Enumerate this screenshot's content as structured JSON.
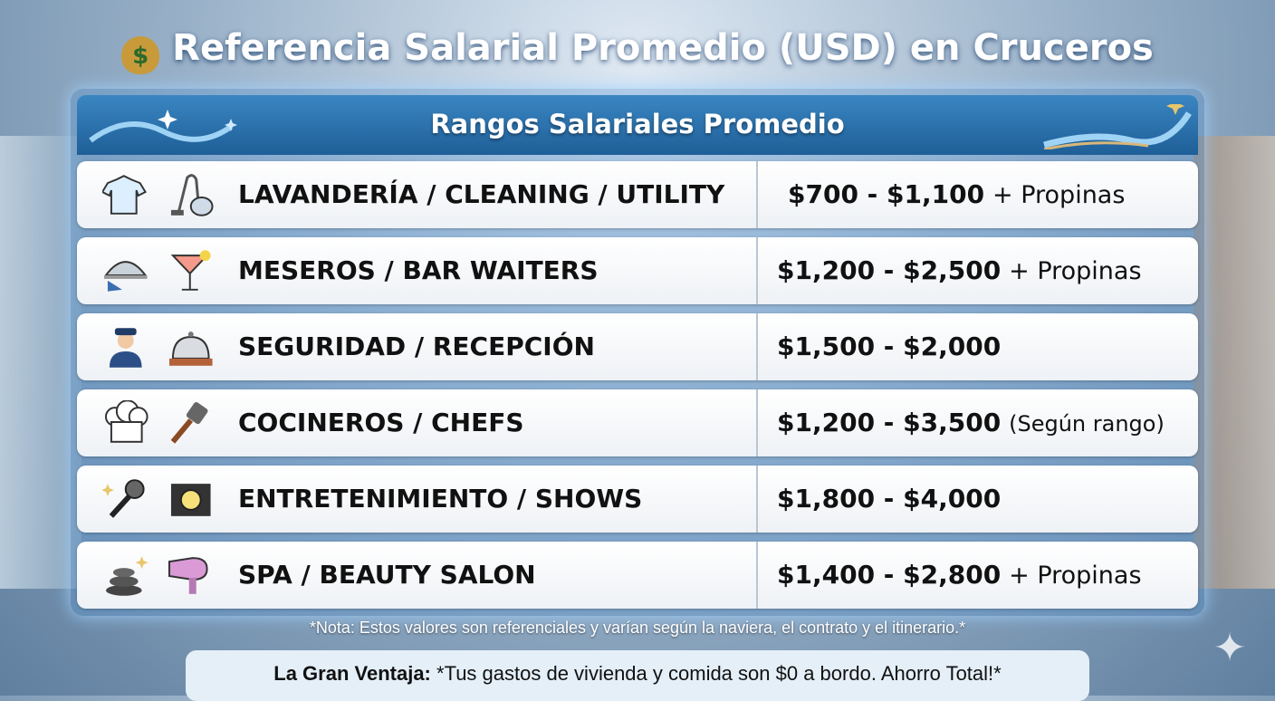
{
  "title": {
    "icon": "money-bag-icon",
    "text": "Referencia Salarial Promedio (USD) en Cruceros"
  },
  "table": {
    "header": "Rangos Salariales Promedio",
    "rows": [
      {
        "job": "LAVANDERÍA / CLEANING / UTILITY",
        "range": "$700 - $1,100",
        "extra": "+ Propinas",
        "icons": [
          "shirt-icon",
          "vacuum-cleaner-icon"
        ]
      },
      {
        "job": "MESEROS / BAR WAITERS",
        "range": "$1,200 - $2,500",
        "extra": "+ Propinas",
        "icons": [
          "serving-tray-icon",
          "cocktail-icon"
        ]
      },
      {
        "job": "SEGURIDAD / RECEPCIÓN",
        "range": "$1,500 - $2,000",
        "extra": "",
        "icons": [
          "security-guard-icon",
          "service-bell-icon"
        ]
      },
      {
        "job": "COCINEROS / CHEFS",
        "range": "$1,200 - $3,500",
        "extra": "(Según rango)",
        "icons": [
          "chef-hat-icon",
          "spatula-icon"
        ]
      },
      {
        "job": "ENTRETENIMIENTO / SHOWS",
        "range": "$1,800 - $4,000",
        "extra": "",
        "icons": [
          "microphone-icon",
          "spotlight-icon"
        ]
      },
      {
        "job": "SPA / BEAUTY SALON",
        "range": "$1,400 - $2,800",
        "extra": "+ Propinas",
        "icons": [
          "spa-stones-icon",
          "hair-dryer-icon"
        ]
      }
    ]
  },
  "note": "*Nota: Estos valores son referenciales y varían según la naviera, el contrato y el itinerario.*",
  "advantage": {
    "label": "La Gran Ventaja:",
    "text": "*Tus gastos de vivienda y comida son $0 a bordo. Ahorro Total!*"
  },
  "colors": {
    "header": "#2a72ad",
    "row": "#f4f6f9",
    "text": "#111111",
    "title": "#ffffff"
  }
}
